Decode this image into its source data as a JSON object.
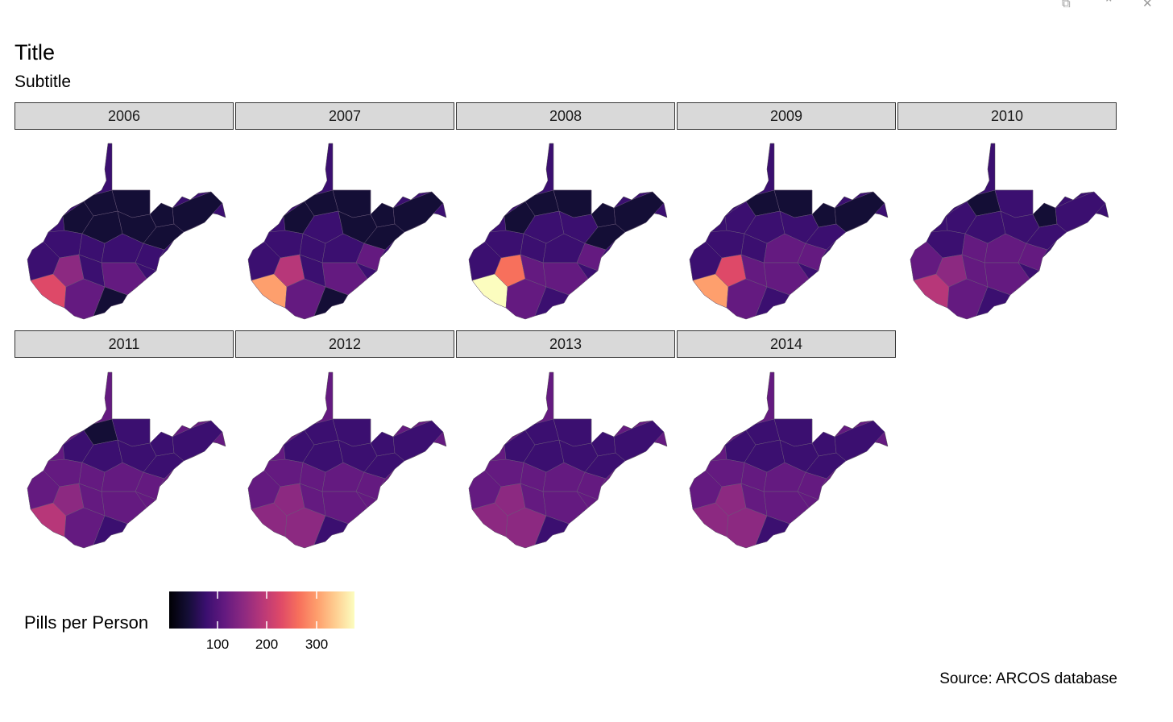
{
  "plot": {
    "title": "Title",
    "subtitle": "Subtitle",
    "caption": "Source: ARCOS database",
    "legend_title": "Pills per Person",
    "legend_ticks": [
      "100",
      "200",
      "300"
    ]
  },
  "window_controls": [
    {
      "name": "popout-icon",
      "glyph": "⧉"
    },
    {
      "name": "collapse-icon",
      "glyph": "⌃"
    },
    {
      "name": "close-icon",
      "glyph": "✕"
    }
  ],
  "colors": {
    "strip_bg": "#d9d9d9",
    "scale": [
      "#000004",
      "#140e36",
      "#3b0f70",
      "#641a80",
      "#8c2981",
      "#b73779",
      "#de4968",
      "#f7705c",
      "#fe9f6d",
      "#fecf92",
      "#fcfdbf"
    ]
  },
  "chart_data": {
    "type": "facet choropleth map",
    "variable": "Pills per Person",
    "region": "West Virginia counties",
    "color_scale": "magma",
    "legend_breaks": [
      100,
      200,
      300
    ],
    "legend_range": [
      0,
      380
    ],
    "facets": [
      {
        "year": "2006",
        "typical_value": 70,
        "hotspot_value": 210
      },
      {
        "year": "2007",
        "typical_value": 75,
        "hotspot_value": 290
      },
      {
        "year": "2008",
        "typical_value": 80,
        "hotspot_value": 380
      },
      {
        "year": "2009",
        "typical_value": 85,
        "hotspot_value": 300
      },
      {
        "year": "2010",
        "typical_value": 90,
        "hotspot_value": 180
      },
      {
        "year": "2011",
        "typical_value": 95,
        "hotspot_value": 200
      },
      {
        "year": "2012",
        "typical_value": 100,
        "hotspot_value": 170
      },
      {
        "year": "2013",
        "typical_value": 100,
        "hotspot_value": 170
      },
      {
        "year": "2014",
        "typical_value": 100,
        "hotspot_value": 170
      }
    ]
  }
}
